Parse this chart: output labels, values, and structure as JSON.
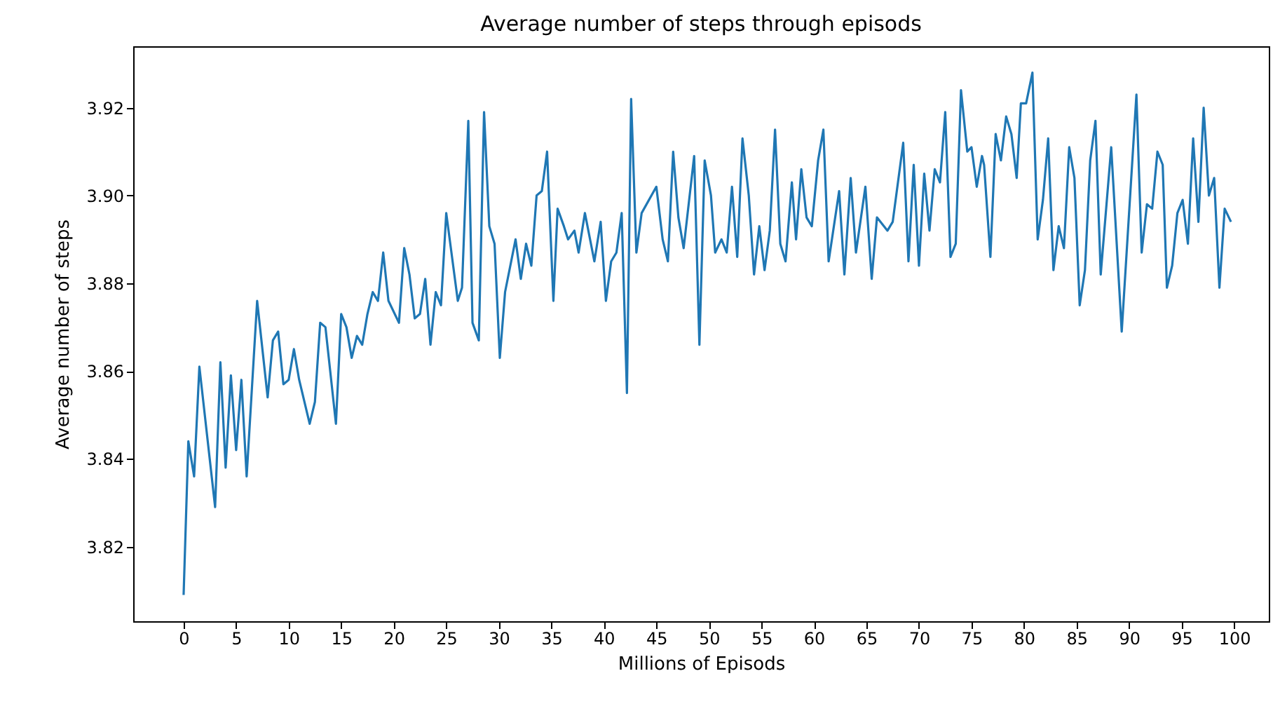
{
  "chart_data": {
    "type": "line",
    "title": "Average number of steps through episods",
    "xlabel": "Millions of Episods",
    "ylabel": "Average number of steps",
    "x": [
      0,
      0.45,
      1,
      1.5,
      3,
      3.5,
      4,
      4.5,
      5,
      5.5,
      6,
      7,
      8,
      8.5,
      9,
      9.5,
      10,
      10.5,
      11,
      12,
      12.5,
      13,
      13.5,
      14.5,
      15,
      15.5,
      16,
      16.5,
      17,
      17.5,
      18,
      18.5,
      19,
      19.5,
      20.5,
      21,
      21.5,
      22,
      22.5,
      23,
      23.5,
      24,
      24.5,
      25,
      26.1,
      26.5,
      27.1,
      27.5,
      28.1,
      28.6,
      29.1,
      29.6,
      30.1,
      30.6,
      31.6,
      32.1,
      32.6,
      33.1,
      33.6,
      34.1,
      34.6,
      35.2,
      35.6,
      36.2,
      36.6,
      37.2,
      37.6,
      38.2,
      39.1,
      39.7,
      40.2,
      40.7,
      41.2,
      41.7,
      42.2,
      42.6,
      43.1,
      43.6,
      45,
      45.6,
      46.1,
      46.6,
      47.1,
      47.6,
      48.6,
      49.1,
      49.6,
      50.2,
      50.6,
      51.2,
      51.7,
      52.2,
      52.7,
      53.2,
      53.8,
      54.3,
      54.8,
      55.3,
      55.8,
      56.3,
      56.8,
      57.3,
      57.9,
      58.3,
      58.8,
      59.3,
      59.8,
      60.4,
      60.9,
      61.4,
      62.4,
      62.9,
      63.5,
      64,
      64.9,
      65.5,
      66,
      67,
      67.5,
      68.5,
      69,
      69.5,
      70,
      70.5,
      71,
      71.5,
      72,
      72.5,
      73,
      73.5,
      74,
      74.6,
      75,
      75.5,
      76,
      76.2,
      76.8,
      77.3,
      77.8,
      78.3,
      78.8,
      79.3,
      79.7,
      80.2,
      80.8,
      81.3,
      81.8,
      82.3,
      82.8,
      83.3,
      83.8,
      84.3,
      84.8,
      85.3,
      85.8,
      86.3,
      86.8,
      87.3,
      88.3,
      89.3,
      90.7,
      91.2,
      91.7,
      92.2,
      92.7,
      93.2,
      93.6,
      94.1,
      94.6,
      95.1,
      95.6,
      96.1,
      96.6,
      97.1,
      97.6,
      98.1,
      98.6,
      99.1,
      99.7
    ],
    "series": [
      {
        "color": "#1f77b4",
        "values": [
          3.809,
          3.844,
          3.836,
          3.861,
          3.829,
          3.862,
          3.838,
          3.859,
          3.842,
          3.858,
          3.836,
          3.876,
          3.854,
          3.867,
          3.869,
          3.857,
          3.858,
          3.865,
          3.858,
          3.848,
          3.853,
          3.871,
          3.87,
          3.848,
          3.873,
          3.87,
          3.863,
          3.868,
          3.866,
          3.873,
          3.878,
          3.876,
          3.887,
          3.876,
          3.871,
          3.888,
          3.882,
          3.872,
          3.873,
          3.881,
          3.866,
          3.878,
          3.875,
          3.896,
          3.876,
          3.879,
          3.917,
          3.871,
          3.867,
          3.919,
          3.893,
          3.889,
          3.863,
          3.878,
          3.89,
          3.881,
          3.889,
          3.884,
          3.9,
          3.901,
          3.91,
          3.876,
          3.897,
          3.893,
          3.89,
          3.892,
          3.887,
          3.896,
          3.885,
          3.894,
          3.876,
          3.885,
          3.887,
          3.896,
          3.855,
          3.922,
          3.887,
          3.896,
          3.902,
          3.89,
          3.885,
          3.91,
          3.895,
          3.888,
          3.909,
          3.866,
          3.908,
          3.9,
          3.887,
          3.89,
          3.887,
          3.902,
          3.886,
          3.913,
          3.9,
          3.882,
          3.893,
          3.883,
          3.892,
          3.915,
          3.889,
          3.885,
          3.903,
          3.89,
          3.906,
          3.895,
          3.893,
          3.908,
          3.915,
          3.885,
          3.901,
          3.882,
          3.904,
          3.887,
          3.902,
          3.881,
          3.895,
          3.892,
          3.894,
          3.912,
          3.885,
          3.907,
          3.884,
          3.905,
          3.892,
          3.906,
          3.903,
          3.919,
          3.886,
          3.889,
          3.924,
          3.91,
          3.911,
          3.902,
          3.909,
          3.907,
          3.886,
          3.914,
          3.908,
          3.918,
          3.914,
          3.904,
          3.921,
          3.921,
          3.928,
          3.89,
          3.899,
          3.913,
          3.883,
          3.893,
          3.888,
          3.911,
          3.904,
          3.875,
          3.883,
          3.908,
          3.917,
          3.882,
          3.911,
          3.869,
          3.923,
          3.887,
          3.898,
          3.897,
          3.91,
          3.907,
          3.879,
          3.884,
          3.896,
          3.899,
          3.889,
          3.913,
          3.894,
          3.92,
          3.9,
          3.904,
          3.879,
          3.897,
          3.894
        ]
      }
    ],
    "xlim": [
      -4.8,
      103.3
    ],
    "xticks": [
      0,
      5,
      10,
      15,
      20,
      25,
      30,
      35,
      40,
      45,
      50,
      55,
      60,
      65,
      70,
      75,
      80,
      85,
      90,
      95,
      100
    ],
    "ylim": [
      3.803,
      3.934
    ],
    "yticks": [
      3.82,
      3.84,
      3.86,
      3.88,
      {
        "value": 3.9,
        "label": "3.90"
      },
      3.92
    ],
    "grid": false,
    "marker": "none",
    "line_style": "solid"
  }
}
